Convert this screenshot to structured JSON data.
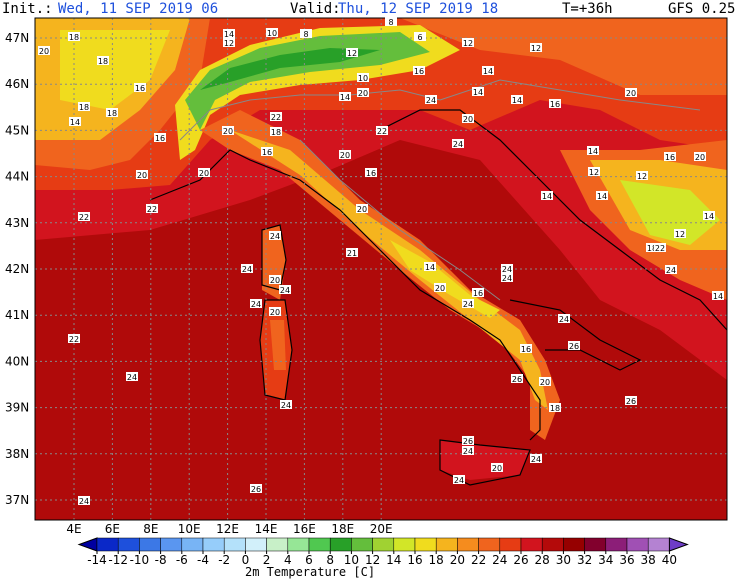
{
  "header": {
    "init_label": "Init.:",
    "init": "Wed, 11 SEP 2019  06",
    "valid_label": "Valid:",
    "valid": "Thu, 12 SEP 2019  18",
    "lead": "T=+36h",
    "model": "GFS 0.25"
  },
  "lat_labels": [
    "47N",
    "46N",
    "45N",
    "44N",
    "43N",
    "42N",
    "41N",
    "40N",
    "39N",
    "38N",
    "37N"
  ],
  "lon_labels": [
    "4E",
    "6E",
    "8E",
    "10E",
    "12E",
    "14E",
    "16E",
    "18E",
    "20E"
  ],
  "station_values": [
    18,
    20,
    18,
    16,
    18,
    14,
    18,
    16,
    20,
    22,
    22,
    22,
    24,
    24,
    26,
    24,
    24,
    24,
    20,
    24,
    24,
    20,
    20,
    22,
    18,
    16,
    20,
    14,
    12,
    10,
    8,
    12,
    8,
    6,
    12,
    14,
    16,
    10,
    20,
    14,
    22,
    20,
    16,
    20,
    21,
    14,
    20,
    16,
    24,
    24,
    24,
    24,
    16,
    26,
    26,
    20,
    18,
    26,
    26,
    24,
    20,
    24,
    24,
    24,
    20,
    24,
    14,
    14,
    12,
    14,
    12,
    16,
    20,
    14,
    14,
    12,
    18,
    22,
    24,
    16,
    20,
    14,
    14,
    12
  ],
  "colorbar": {
    "title": "2m Temperature [C]",
    "ticks": [
      -14,
      -12,
      -10,
      -8,
      -6,
      -4,
      -2,
      0,
      2,
      4,
      6,
      8,
      10,
      12,
      14,
      16,
      18,
      20,
      22,
      24,
      26,
      28,
      30,
      32,
      34,
      36,
      38,
      40
    ],
    "colors": [
      "#0000a0",
      "#0a28c8",
      "#1e50dc",
      "#3c78e6",
      "#5a96f0",
      "#78b4f5",
      "#96cdfa",
      "#b4e1fa",
      "#d2f0fa",
      "#c8f0c8",
      "#96e696",
      "#50c850",
      "#28a028",
      "#64be3c",
      "#a0d232",
      "#d2e628",
      "#f0dc1e",
      "#f5b41e",
      "#f58c1e",
      "#f0641e",
      "#e63c14",
      "#d2141e",
      "#b40a0a",
      "#960000",
      "#82002d",
      "#8c1e78",
      "#a050b4",
      "#b482d2",
      "#6e3cc8"
    ]
  }
}
